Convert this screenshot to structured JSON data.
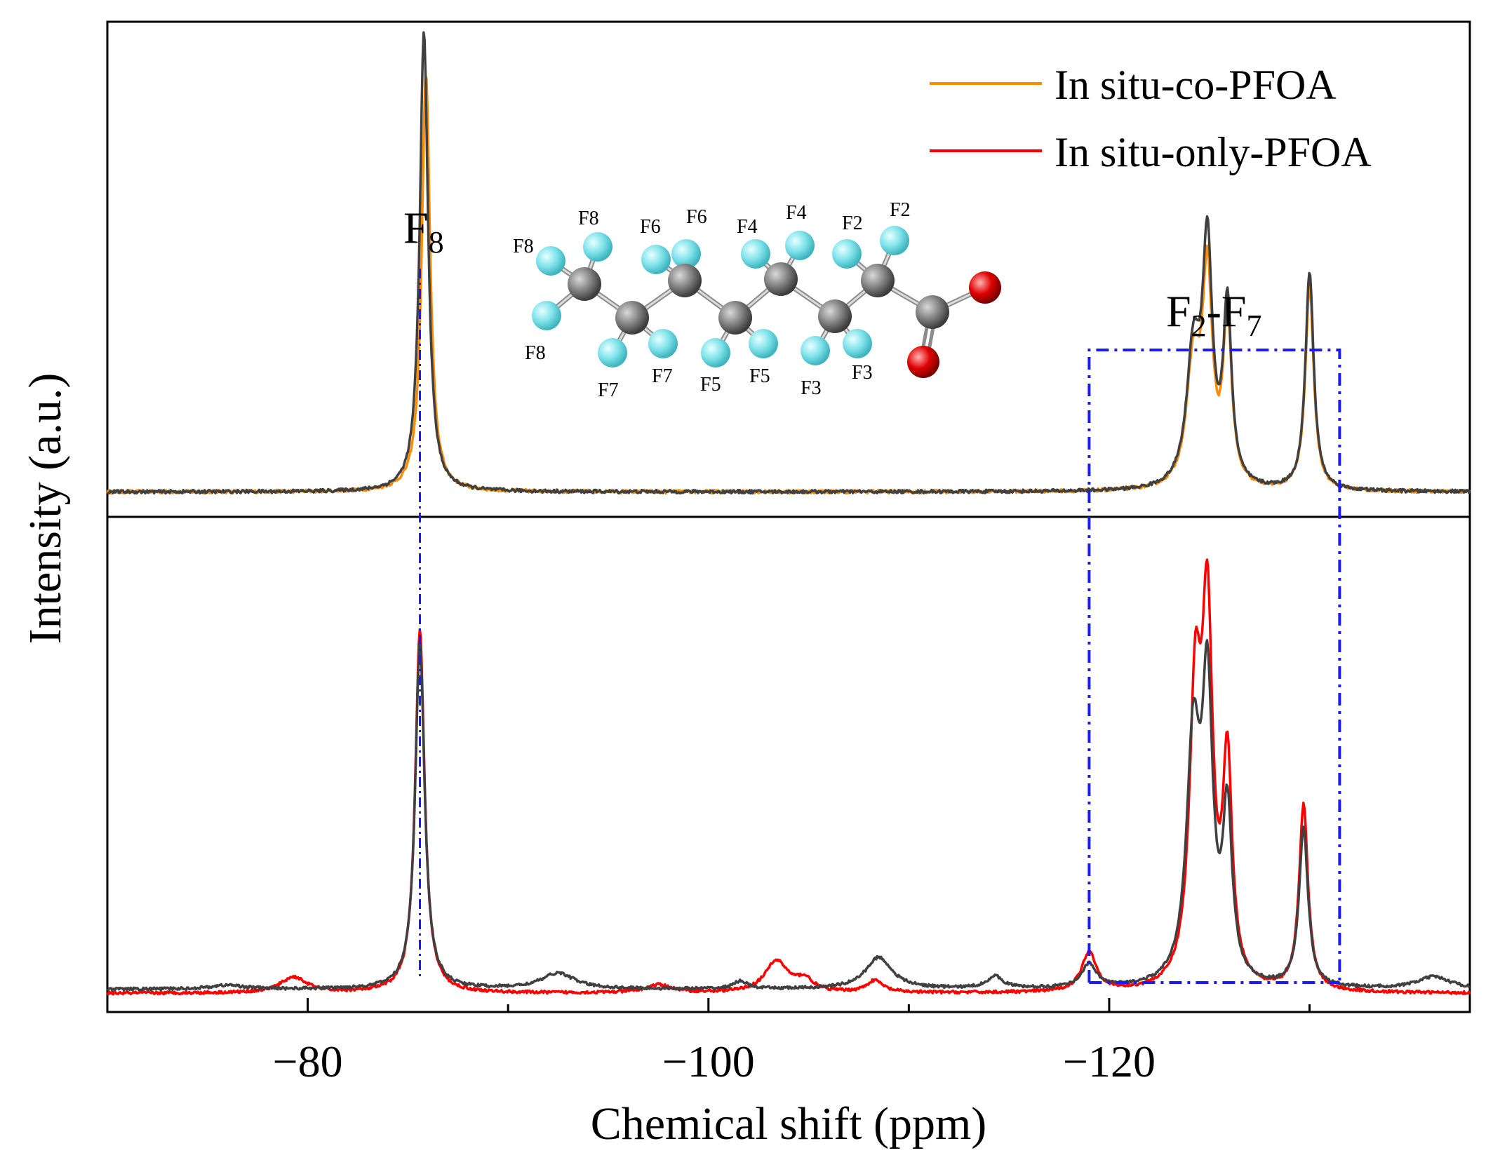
{
  "chart_data": {
    "type": "line",
    "xlabel": "Chemical shift (ppm)",
    "ylabel": "Intensity (a.u.)",
    "xlim": [
      -70,
      -138
    ],
    "x_direction": "reversed",
    "xticks": [
      {
        "value": -80,
        "label": "−80"
      },
      {
        "value": -100,
        "label": "−100"
      },
      {
        "value": -120,
        "label": "−120"
      }
    ],
    "grid": false,
    "legend_position": "top-right",
    "legend": [
      {
        "label": "In situ-co-PFOA",
        "color": "#ff8c00"
      },
      {
        "label": "In situ-only-PFOA",
        "color": "#ff0000"
      }
    ],
    "peak_labels": {
      "f8": {
        "main": "F",
        "sub": "8"
      },
      "f2f7": {
        "main1": "F",
        "sub1": "2",
        "mid": "-F",
        "sub2": "7"
      }
    },
    "region_box_ppm": [
      -119,
      -131.5
    ],
    "f8_marker_ppm": -85.6,
    "panels": [
      {
        "name": "top",
        "ylim": [
          0,
          100
        ],
        "series": [
          {
            "name": "In situ-co-PFOA",
            "color": "#ff8c00",
            "baseline": 1,
            "peaks": [
              {
                "x": -85.9,
                "height": 90,
                "width": 0.25
              },
              {
                "x": -124.2,
                "height": 26,
                "width": 0.4
              },
              {
                "x": -124.9,
                "height": 44,
                "width": 0.3
              },
              {
                "x": -125.9,
                "height": 36,
                "width": 0.25
              },
              {
                "x": -130.0,
                "height": 44,
                "width": 0.25
              }
            ]
          },
          {
            "name": "",
            "color": "#404040",
            "baseline": 1,
            "peaks": [
              {
                "x": -85.8,
                "height": 99,
                "width": 0.25
              },
              {
                "x": -124.2,
                "height": 28,
                "width": 0.4
              },
              {
                "x": -124.9,
                "height": 50,
                "width": 0.3
              },
              {
                "x": -125.9,
                "height": 38,
                "width": 0.25
              },
              {
                "x": -130.0,
                "height": 47,
                "width": 0.25
              }
            ]
          }
        ]
      },
      {
        "name": "bottom",
        "ylim": [
          0,
          100
        ],
        "series": [
          {
            "name": "In situ-only-PFOA",
            "color": "#ff0000",
            "baseline": 1,
            "peaks": [
              {
                "x": -79.3,
                "height": 4,
                "width": 0.8
              },
              {
                "x": -85.6,
                "height": 92,
                "width": 0.28
              },
              {
                "x": -97.5,
                "height": 2,
                "width": 0.8
              },
              {
                "x": -103.4,
                "height": 8,
                "width": 0.7
              },
              {
                "x": -104.8,
                "height": 3,
                "width": 0.5
              },
              {
                "x": -108.3,
                "height": 3,
                "width": 0.5
              },
              {
                "x": -119.0,
                "height": 10,
                "width": 0.45
              },
              {
                "x": -124.3,
                "height": 70,
                "width": 0.35
              },
              {
                "x": -124.9,
                "height": 88,
                "width": 0.32
              },
              {
                "x": -125.9,
                "height": 55,
                "width": 0.28
              },
              {
                "x": -129.7,
                "height": 47,
                "width": 0.27
              }
            ]
          },
          {
            "name": "",
            "color": "#404040",
            "baseline": 2,
            "peaks": [
              {
                "x": -76.0,
                "height": 1,
                "width": 1.0
              },
              {
                "x": -85.6,
                "height": 88,
                "width": 0.28
              },
              {
                "x": -92.5,
                "height": 4,
                "width": 1.0
              },
              {
                "x": -101.6,
                "height": 2,
                "width": 0.4
              },
              {
                "x": -108.5,
                "height": 8,
                "width": 0.8
              },
              {
                "x": -114.3,
                "height": 3,
                "width": 0.5
              },
              {
                "x": -119.0,
                "height": 6,
                "width": 0.45
              },
              {
                "x": -124.2,
                "height": 60,
                "width": 0.4
              },
              {
                "x": -124.9,
                "height": 70,
                "width": 0.32
              },
              {
                "x": -125.9,
                "height": 42,
                "width": 0.28
              },
              {
                "x": -129.7,
                "height": 40,
                "width": 0.27
              },
              {
                "x": -136.2,
                "height": 3,
                "width": 1.0
              }
            ]
          }
        ]
      }
    ],
    "molecule": {
      "atom_labels": [
        "F8",
        "F8",
        "F8",
        "F6",
        "F6",
        "F4",
        "F4",
        "F2",
        "F2",
        "F7",
        "F7",
        "F5",
        "F5",
        "F3",
        "F3"
      ]
    }
  }
}
